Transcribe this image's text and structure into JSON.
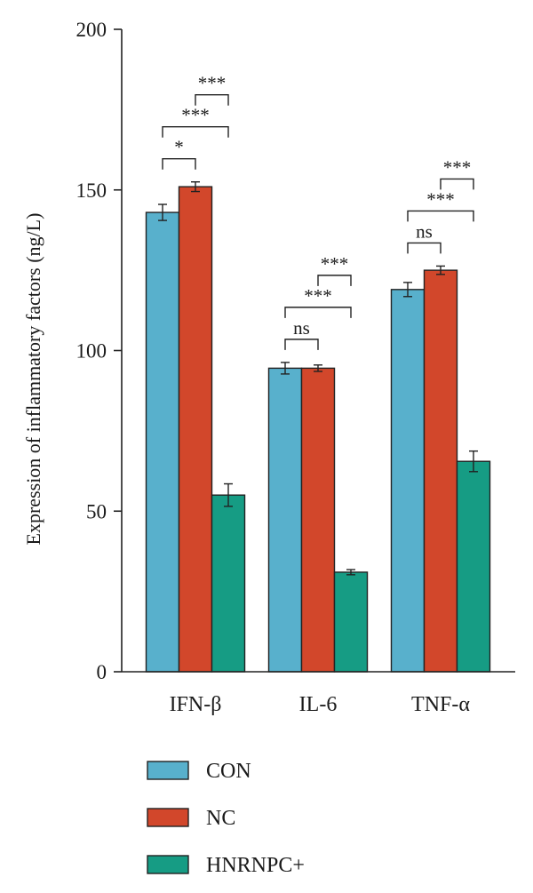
{
  "chart_data": {
    "type": "bar",
    "title": "",
    "ylabel": "Expression of inflammatory factors (ng/L)",
    "xlabel": "",
    "ylim": [
      0,
      200
    ],
    "yticks": [
      0,
      50,
      100,
      150,
      200
    ],
    "categories": [
      "IFN-β",
      "IL-6",
      "TNF-α"
    ],
    "series": [
      {
        "name": "CON",
        "color": "#58b0cc",
        "values": [
          143,
          94.5,
          119
        ],
        "errors": [
          2.5,
          1.8,
          2.2
        ]
      },
      {
        "name": "NC",
        "color": "#d2472b",
        "values": [
          151,
          94.5,
          125
        ],
        "errors": [
          1.5,
          1.0,
          1.3
        ]
      },
      {
        "name": "HNRNPC+",
        "color": "#169c84",
        "values": [
          55,
          31,
          65.5
        ],
        "errors": [
          3.5,
          0.8,
          3.2
        ]
      }
    ],
    "legend_position": "bottom",
    "significance": [
      {
        "category": 0,
        "from": 0,
        "to": 1,
        "label": "*"
      },
      {
        "category": 0,
        "from": 0,
        "to": 2,
        "label": "***"
      },
      {
        "category": 0,
        "from": 1,
        "to": 2,
        "label": "***"
      },
      {
        "category": 1,
        "from": 0,
        "to": 1,
        "label": "ns"
      },
      {
        "category": 1,
        "from": 0,
        "to": 2,
        "label": "***"
      },
      {
        "category": 1,
        "from": 1,
        "to": 2,
        "label": "***"
      },
      {
        "category": 2,
        "from": 0,
        "to": 1,
        "label": "ns"
      },
      {
        "category": 2,
        "from": 0,
        "to": 2,
        "label": "***"
      },
      {
        "category": 2,
        "from": 1,
        "to": 2,
        "label": "***"
      }
    ]
  }
}
